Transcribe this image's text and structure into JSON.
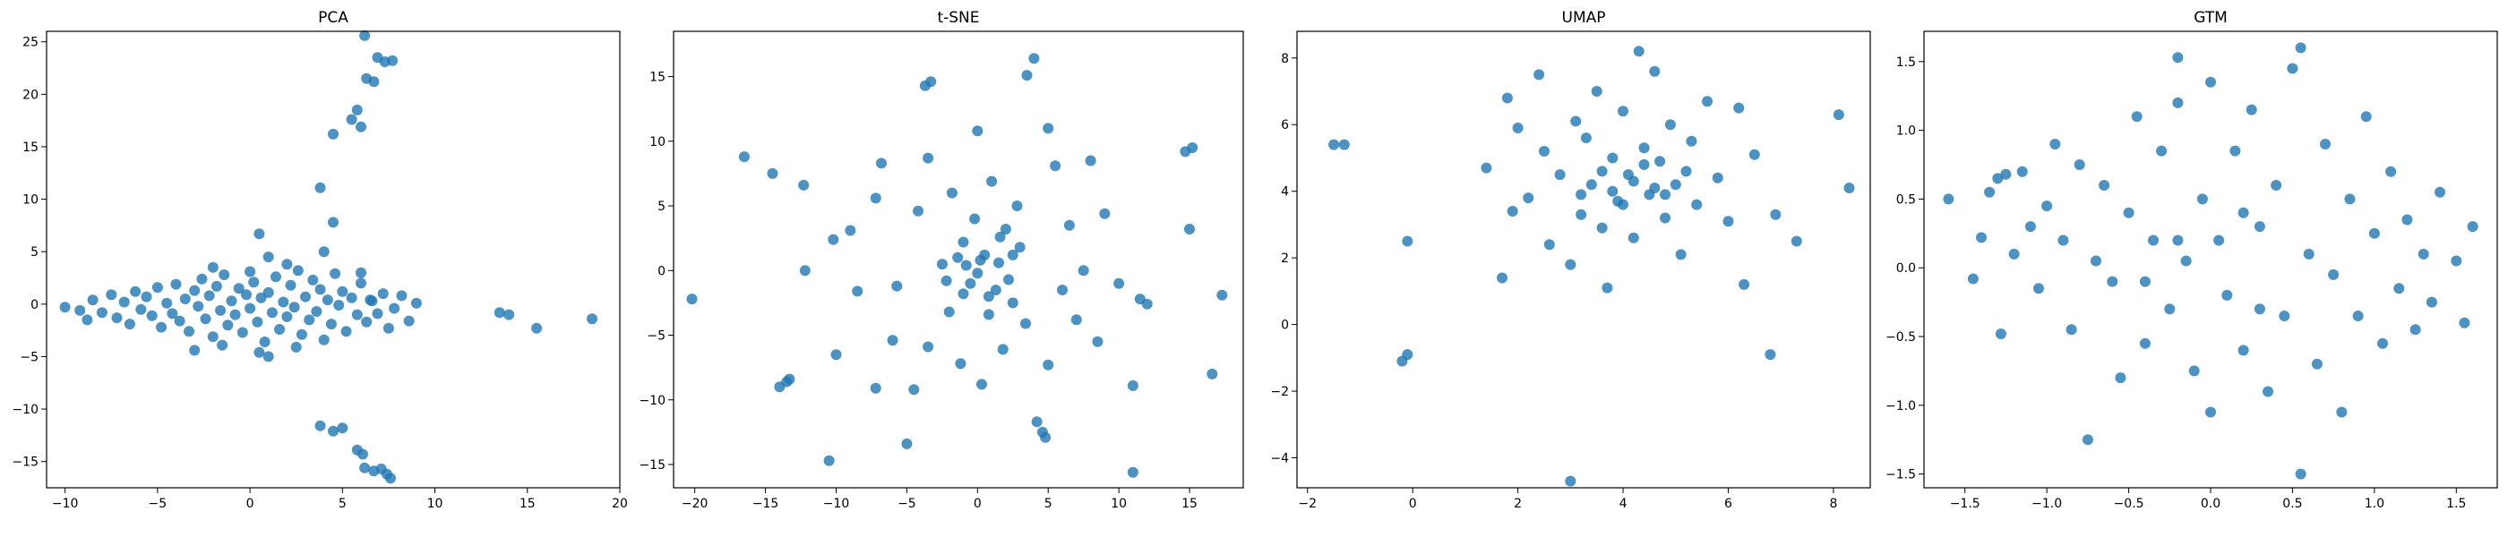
{
  "chart_data": [
    {
      "type": "scatter",
      "title": "PCA",
      "xlim": [
        -11,
        20
      ],
      "ylim": [
        -17.5,
        26
      ],
      "xticks": [
        -10,
        -5,
        0,
        5,
        10,
        15,
        20
      ],
      "yticks": [
        -15,
        -10,
        -5,
        0,
        5,
        10,
        15,
        20,
        25
      ],
      "color": "#1f77b4",
      "points": [
        [
          -10,
          -0.3
        ],
        [
          -9.2,
          -0.6
        ],
        [
          -8.8,
          -1.5
        ],
        [
          -8.5,
          0.4
        ],
        [
          -8,
          -0.8
        ],
        [
          -7.5,
          0.9
        ],
        [
          -7.2,
          -1.3
        ],
        [
          -6.8,
          0.2
        ],
        [
          -6.5,
          -1.9
        ],
        [
          -6.2,
          1.2
        ],
        [
          -5.9,
          -0.5
        ],
        [
          -5.6,
          0.7
        ],
        [
          -5.3,
          -1.1
        ],
        [
          -5,
          1.6
        ],
        [
          -4.8,
          -2.2
        ],
        [
          -4.5,
          0.1
        ],
        [
          -4.2,
          -0.9
        ],
        [
          -4,
          1.9
        ],
        [
          -3.8,
          -1.6
        ],
        [
          -3.5,
          0.5
        ],
        [
          -3.3,
          -2.6
        ],
        [
          -3,
          1.3
        ],
        [
          -2.8,
          -0.2
        ],
        [
          -2.6,
          2.4
        ],
        [
          -2.4,
          -1.4
        ],
        [
          -2.2,
          0.8
        ],
        [
          -2,
          -3.1
        ],
        [
          -1.8,
          1.7
        ],
        [
          -1.6,
          -0.6
        ],
        [
          -1.4,
          2.8
        ],
        [
          -1.2,
          -2
        ],
        [
          -1,
          0.3
        ],
        [
          -0.8,
          -1
        ],
        [
          -0.6,
          1.5
        ],
        [
          -0.4,
          -2.7
        ],
        [
          -0.2,
          0.9
        ],
        [
          0,
          -0.4
        ],
        [
          0.2,
          2.1
        ],
        [
          0.4,
          -1.7
        ],
        [
          0.6,
          0.6
        ],
        [
          0.8,
          -3.6
        ],
        [
          1,
          1.1
        ],
        [
          1.2,
          -0.8
        ],
        [
          1.4,
          2.6
        ],
        [
          1.6,
          -2.4
        ],
        [
          1.8,
          0.2
        ],
        [
          2,
          -1.2
        ],
        [
          2.2,
          1.8
        ],
        [
          2.4,
          -0.3
        ],
        [
          2.6,
          3.2
        ],
        [
          2.8,
          -2.9
        ],
        [
          3,
          0.7
        ],
        [
          3.2,
          -1.5
        ],
        [
          3.4,
          2.3
        ],
        [
          3.6,
          -0.7
        ],
        [
          3.8,
          1.4
        ],
        [
          4,
          -3.4
        ],
        [
          4.2,
          0.4
        ],
        [
          4.4,
          -1.9
        ],
        [
          4.6,
          2.9
        ],
        [
          4.8,
          -0.1
        ],
        [
          5,
          1.2
        ],
        [
          5.2,
          -2.6
        ],
        [
          5.5,
          0.6
        ],
        [
          5.8,
          -1
        ],
        [
          6,
          2
        ],
        [
          6.3,
          -1.7
        ],
        [
          6.6,
          0.3
        ],
        [
          6.9,
          -0.9
        ],
        [
          7.2,
          1
        ],
        [
          7.5,
          -2.3
        ],
        [
          7.8,
          -0.4
        ],
        [
          8.2,
          0.8
        ],
        [
          8.6,
          -1.6
        ],
        [
          9,
          0.1
        ],
        [
          -3,
          -4.4
        ],
        [
          -1.5,
          -3.9
        ],
        [
          0.5,
          -4.6
        ],
        [
          2.5,
          -4.1
        ],
        [
          1,
          -5
        ],
        [
          -2,
          3.5
        ],
        [
          0,
          3.1
        ],
        [
          2,
          3.8
        ],
        [
          1,
          4.5
        ],
        [
          0.5,
          6.7
        ],
        [
          4,
          5
        ],
        [
          3.8,
          11.1
        ],
        [
          4.5,
          7.8
        ],
        [
          6,
          3
        ],
        [
          6.5,
          0.4
        ],
        [
          13.5,
          -0.8
        ],
        [
          14,
          -1
        ],
        [
          15.5,
          -2.3
        ],
        [
          18.5,
          -1.4
        ],
        [
          4.5,
          16.2
        ],
        [
          5.5,
          17.6
        ],
        [
          5.8,
          18.5
        ],
        [
          6,
          16.9
        ],
        [
          6.3,
          21.5
        ],
        [
          6.7,
          21.2
        ],
        [
          6.9,
          23.5
        ],
        [
          7.3,
          23.1
        ],
        [
          7.7,
          23.2
        ],
        [
          6.2,
          25.6
        ],
        [
          3.8,
          -11.6
        ],
        [
          4.5,
          -12.1
        ],
        [
          5,
          -11.8
        ],
        [
          5.8,
          -13.9
        ],
        [
          6.1,
          -14.3
        ],
        [
          6.2,
          -15.6
        ],
        [
          6.7,
          -15.9
        ],
        [
          7.1,
          -15.7
        ],
        [
          7.4,
          -16.2
        ],
        [
          7.6,
          -16.6
        ]
      ]
    },
    {
      "type": "scatter",
      "title": "t-SNE",
      "xlim": [
        -21.5,
        18.8
      ],
      "ylim": [
        -16.8,
        18.5
      ],
      "xticks": [
        -20,
        -15,
        -10,
        -5,
        0,
        5,
        10,
        15
      ],
      "yticks": [
        -15,
        -10,
        -5,
        0,
        5,
        10,
        15
      ],
      "color": "#1f77b4",
      "points": [
        [
          -20.2,
          -2.2
        ],
        [
          -16.5,
          8.8
        ],
        [
          -14.5,
          7.5
        ],
        [
          -14,
          -9
        ],
        [
          -13.5,
          -8.6
        ],
        [
          -13.3,
          -8.4
        ],
        [
          -12.3,
          6.6
        ],
        [
          -12.2,
          0
        ],
        [
          -10.5,
          -14.7
        ],
        [
          -10,
          -6.5
        ],
        [
          -10.2,
          2.4
        ],
        [
          -9,
          3.1
        ],
        [
          -8.5,
          -1.6
        ],
        [
          -7.2,
          -9.1
        ],
        [
          -7.2,
          5.6
        ],
        [
          -6.8,
          8.3
        ],
        [
          -6,
          -5.4
        ],
        [
          -5.7,
          -1.2
        ],
        [
          -5,
          -13.4
        ],
        [
          -4.5,
          -9.2
        ],
        [
          -4.2,
          4.6
        ],
        [
          -3.5,
          -5.9
        ],
        [
          -3.5,
          8.7
        ],
        [
          -3.7,
          14.3
        ],
        [
          -3.3,
          14.6
        ],
        [
          -2.5,
          0.5
        ],
        [
          -2,
          -3.2
        ],
        [
          -1.8,
          6
        ],
        [
          -1.2,
          -7.2
        ],
        [
          -1,
          2.2
        ],
        [
          -0.5,
          -1
        ],
        [
          -0.2,
          4
        ],
        [
          0,
          10.8
        ],
        [
          0,
          -0.2
        ],
        [
          0.3,
          -8.8
        ],
        [
          0.5,
          1.2
        ],
        [
          0.8,
          -3.4
        ],
        [
          1,
          6.9
        ],
        [
          1.3,
          -1.5
        ],
        [
          1.5,
          0.6
        ],
        [
          1.8,
          -6.1
        ],
        [
          2,
          3.2
        ],
        [
          2.2,
          -0.7
        ],
        [
          2.5,
          -2.5
        ],
        [
          2.8,
          5
        ],
        [
          3,
          1.8
        ],
        [
          3.4,
          -4.1
        ],
        [
          3.5,
          15.1
        ],
        [
          4,
          16.4
        ],
        [
          4.2,
          -11.7
        ],
        [
          4.6,
          -12.5
        ],
        [
          4.8,
          -12.9
        ],
        [
          5,
          11
        ],
        [
          5,
          -7.3
        ],
        [
          5.5,
          8.1
        ],
        [
          6,
          -1.5
        ],
        [
          6.5,
          3.5
        ],
        [
          7,
          -3.8
        ],
        [
          7.5,
          0
        ],
        [
          8,
          8.5
        ],
        [
          8.5,
          -5.5
        ],
        [
          9,
          4.4
        ],
        [
          10,
          -1
        ],
        [
          11,
          -8.9
        ],
        [
          11,
          -15.6
        ],
        [
          11.5,
          -2.2
        ],
        [
          12,
          -2.6
        ],
        [
          14.7,
          9.2
        ],
        [
          15,
          3.2
        ],
        [
          15.2,
          9.5
        ],
        [
          16.6,
          -8
        ],
        [
          17.3,
          -1.9
        ],
        [
          -2.2,
          -0.8
        ],
        [
          -1.4,
          1
        ],
        [
          0.8,
          -2
        ],
        [
          2.5,
          1.2
        ],
        [
          -1,
          -1.8
        ],
        [
          1.6,
          2.6
        ],
        [
          0.2,
          0.8
        ],
        [
          -0.8,
          0.4
        ]
      ]
    },
    {
      "type": "scatter",
      "title": "UMAP",
      "xlim": [
        -2.2,
        8.7
      ],
      "ylim": [
        -4.9,
        8.8
      ],
      "xticks": [
        -2,
        0,
        2,
        4,
        6,
        8
      ],
      "yticks": [
        -4,
        -2,
        0,
        2,
        4,
        6,
        8
      ],
      "color": "#1f77b4",
      "points": [
        [
          -1.5,
          5.4
        ],
        [
          -1.3,
          5.4
        ],
        [
          -0.2,
          -1.1
        ],
        [
          -0.1,
          -0.9
        ],
        [
          -0.1,
          2.5
        ],
        [
          1.4,
          4.7
        ],
        [
          1.7,
          1.4
        ],
        [
          1.8,
          6.8
        ],
        [
          1.9,
          3.4
        ],
        [
          2,
          5.9
        ],
        [
          2.2,
          3.8
        ],
        [
          2.4,
          7.5
        ],
        [
          2.5,
          5.2
        ],
        [
          2.6,
          2.4
        ],
        [
          2.8,
          4.5
        ],
        [
          3,
          1.8
        ],
        [
          3,
          -4.7
        ],
        [
          3.1,
          6.1
        ],
        [
          3.2,
          3.3
        ],
        [
          3.3,
          5.6
        ],
        [
          3.4,
          4.2
        ],
        [
          3.5,
          7
        ],
        [
          3.6,
          2.9
        ],
        [
          3.7,
          1.1
        ],
        [
          3.8,
          5
        ],
        [
          3.9,
          3.7
        ],
        [
          4,
          6.4
        ],
        [
          4.1,
          4.5
        ],
        [
          4.2,
          2.6
        ],
        [
          4.3,
          8.2
        ],
        [
          4.4,
          5.3
        ],
        [
          4.5,
          3.9
        ],
        [
          4.6,
          7.6
        ],
        [
          4.7,
          4.9
        ],
        [
          4.8,
          3.2
        ],
        [
          4.9,
          6
        ],
        [
          5,
          4.2
        ],
        [
          5.1,
          2.1
        ],
        [
          5.3,
          5.5
        ],
        [
          5.4,
          3.6
        ],
        [
          5.6,
          6.7
        ],
        [
          5.8,
          4.4
        ],
        [
          6,
          3.1
        ],
        [
          6.2,
          6.5
        ],
        [
          6.3,
          1.2
        ],
        [
          6.5,
          5.1
        ],
        [
          6.8,
          -0.9
        ],
        [
          6.9,
          3.3
        ],
        [
          7.3,
          2.5
        ],
        [
          8.1,
          6.3
        ],
        [
          8.3,
          4.1
        ],
        [
          3.8,
          4
        ],
        [
          4.2,
          4.3
        ],
        [
          4.6,
          4.1
        ],
        [
          4,
          3.6
        ],
        [
          3.6,
          4.6
        ],
        [
          4.4,
          4.8
        ],
        [
          5.2,
          4.6
        ],
        [
          3.2,
          3.9
        ],
        [
          4.8,
          3.9
        ]
      ]
    },
    {
      "type": "scatter",
      "title": "GTM",
      "xlim": [
        -1.75,
        1.75
      ],
      "ylim": [
        -1.6,
        1.72
      ],
      "xticks": [
        -1.5,
        -1.0,
        -0.5,
        0.0,
        0.5,
        1.0,
        1.5
      ],
      "yticks": [
        -1.5,
        -1.0,
        -0.5,
        0.0,
        0.5,
        1.0,
        1.5
      ],
      "tick_labels_x": [
        "−1.5",
        "−1.0",
        "−0.5",
        "0.0",
        "0.5",
        "1.0",
        "1.5"
      ],
      "tick_labels_y": [
        "−1.5",
        "−1.0",
        "−0.5",
        "0.0",
        "0.5",
        "1.0",
        "1.5"
      ],
      "color": "#1f77b4",
      "points": [
        [
          -1.6,
          0.5
        ],
        [
          -1.45,
          -0.08
        ],
        [
          -1.4,
          0.22
        ],
        [
          -1.35,
          0.55
        ],
        [
          -1.3,
          0.65
        ],
        [
          -1.28,
          -0.48
        ],
        [
          -1.25,
          0.68
        ],
        [
          -1.2,
          0.1
        ],
        [
          -1.15,
          0.7
        ],
        [
          -1.1,
          0.3
        ],
        [
          -1.05,
          -0.15
        ],
        [
          -1,
          0.45
        ],
        [
          -0.95,
          0.9
        ],
        [
          -0.9,
          0.2
        ],
        [
          -0.85,
          -0.45
        ],
        [
          -0.8,
          0.75
        ],
        [
          -0.75,
          -1.25
        ],
        [
          -0.7,
          0.05
        ],
        [
          -0.65,
          0.6
        ],
        [
          -0.6,
          -0.1
        ],
        [
          -0.55,
          -0.8
        ],
        [
          -0.5,
          0.4
        ],
        [
          -0.45,
          1.1
        ],
        [
          -0.4,
          -0.55
        ],
        [
          -0.35,
          0.2
        ],
        [
          -0.3,
          0.85
        ],
        [
          -0.25,
          -0.3
        ],
        [
          -0.2,
          1.2
        ],
        [
          -0.15,
          0.05
        ],
        [
          -0.1,
          -0.75
        ],
        [
          -0.05,
          0.5
        ],
        [
          0,
          1.35
        ],
        [
          0,
          -1.05
        ],
        [
          0.05,
          0.2
        ],
        [
          0.1,
          -0.2
        ],
        [
          0.15,
          0.85
        ],
        [
          0.2,
          -0.6
        ],
        [
          0.25,
          1.15
        ],
        [
          0.3,
          0.3
        ],
        [
          0.35,
          -0.9
        ],
        [
          0.4,
          0.6
        ],
        [
          0.45,
          -0.35
        ],
        [
          0.5,
          1.45
        ],
        [
          0.55,
          -1.5
        ],
        [
          0.55,
          1.6
        ],
        [
          0.6,
          0.1
        ],
        [
          0.65,
          -0.7
        ],
        [
          0.7,
          0.9
        ],
        [
          0.75,
          -0.05
        ],
        [
          0.8,
          -1.05
        ],
        [
          0.85,
          0.5
        ],
        [
          0.9,
          -0.35
        ],
        [
          0.95,
          1.1
        ],
        [
          1,
          0.25
        ],
        [
          1.05,
          -0.55
        ],
        [
          1.1,
          0.7
        ],
        [
          1.15,
          -0.15
        ],
        [
          1.2,
          0.35
        ],
        [
          1.25,
          -0.45
        ],
        [
          1.3,
          0.1
        ],
        [
          1.35,
          -0.25
        ],
        [
          1.4,
          0.55
        ],
        [
          1.5,
          0.05
        ],
        [
          1.55,
          -0.4
        ],
        [
          1.6,
          0.3
        ],
        [
          -0.2,
          1.53
        ],
        [
          -0.2,
          0.2
        ],
        [
          0.3,
          -0.3
        ],
        [
          0.2,
          0.4
        ],
        [
          -0.4,
          -0.1
        ]
      ]
    }
  ]
}
